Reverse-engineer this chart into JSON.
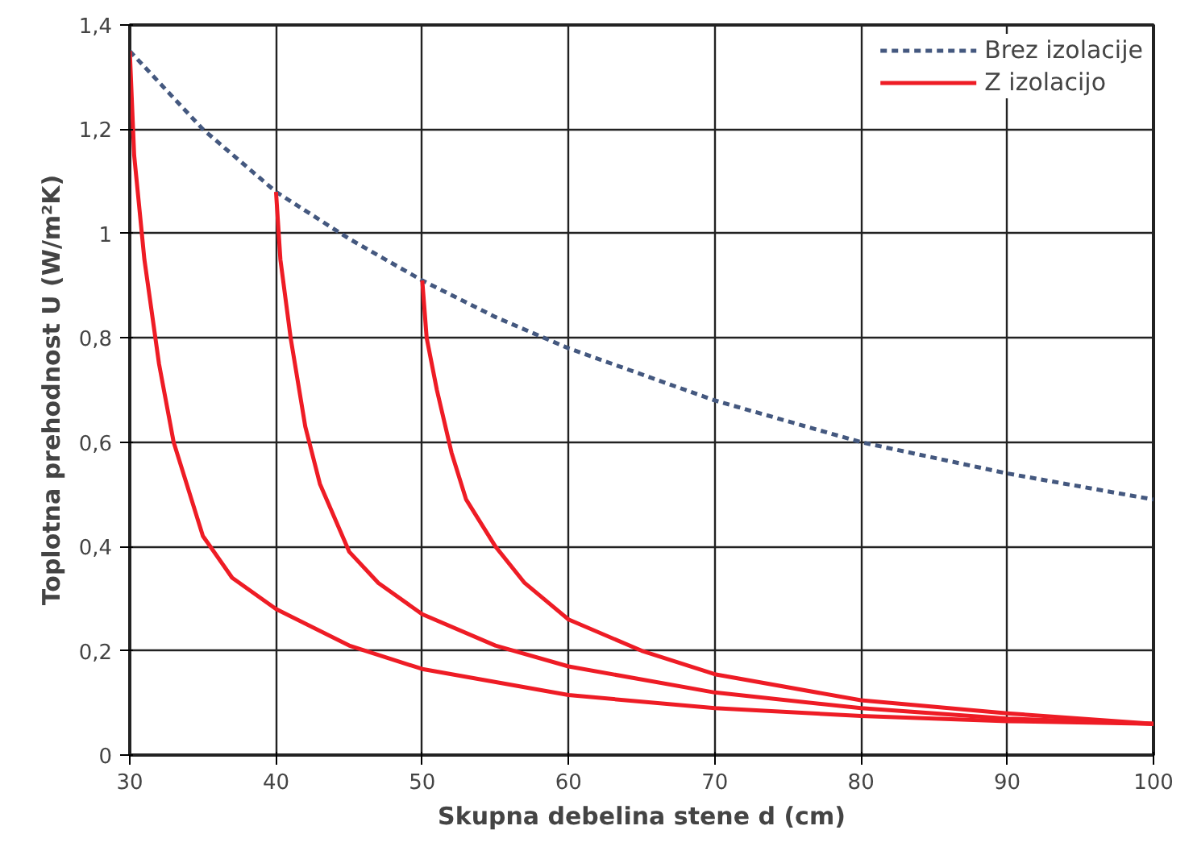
{
  "chart_data": {
    "type": "line",
    "xlabel": "Skupna debelina stene d (cm)",
    "ylabel": "Toplotna prehodnost U (W/m²K)",
    "xlim": [
      30,
      100
    ],
    "ylim": [
      0,
      1.4
    ],
    "xticks": [
      30,
      40,
      50,
      60,
      70,
      80,
      90,
      100
    ],
    "yticks": [
      0,
      {
        "value": 0.2,
        "label": "0,2"
      },
      {
        "value": 0.4,
        "label": "0,4"
      },
      {
        "value": 0.6,
        "label": "0,6"
      },
      {
        "value": 0.8,
        "label": "0,8"
      },
      1,
      {
        "value": 1.2,
        "label": "1,2"
      },
      {
        "value": 1.4,
        "label": "1,4"
      }
    ],
    "grid": true,
    "legend": "top right",
    "marker": "none",
    "series": [
      {
        "name": "Brez izolacije",
        "color": "#44587f",
        "line_style": "dashed",
        "x": [
          30,
          35,
          40,
          45,
          50,
          55,
          60,
          70,
          80,
          90,
          100
        ],
        "values": [
          1.35,
          1.2,
          1.08,
          0.99,
          0.91,
          0.84,
          0.78,
          0.68,
          0.6,
          0.54,
          0.49
        ]
      },
      {
        "name": "Z izolacijo",
        "color": "#ee1c25",
        "line_style": "solid",
        "x": [
          30,
          30.3,
          31,
          32,
          33,
          35,
          37,
          40,
          45,
          50,
          60,
          70,
          80,
          90,
          100
        ],
        "values": [
          1.35,
          1.15,
          0.95,
          0.75,
          0.6,
          0.42,
          0.34,
          0.28,
          0.21,
          0.165,
          0.115,
          0.09,
          0.075,
          0.065,
          0.06
        ]
      },
      {
        "color": "#ee1c25",
        "line_style": "solid",
        "x": [
          40,
          40.3,
          41,
          42,
          43,
          45,
          47,
          50,
          55,
          60,
          70,
          80,
          90,
          100
        ],
        "values": [
          1.08,
          0.95,
          0.8,
          0.63,
          0.52,
          0.39,
          0.33,
          0.27,
          0.21,
          0.17,
          0.12,
          0.09,
          0.07,
          0.06
        ]
      },
      {
        "color": "#ee1c25",
        "line_style": "solid",
        "x": [
          50,
          50.3,
          51,
          52,
          53,
          55,
          57,
          60,
          65,
          70,
          80,
          90,
          100
        ],
        "values": [
          0.91,
          0.8,
          0.7,
          0.58,
          0.49,
          0.4,
          0.33,
          0.26,
          0.2,
          0.155,
          0.105,
          0.08,
          0.06
        ]
      }
    ]
  }
}
